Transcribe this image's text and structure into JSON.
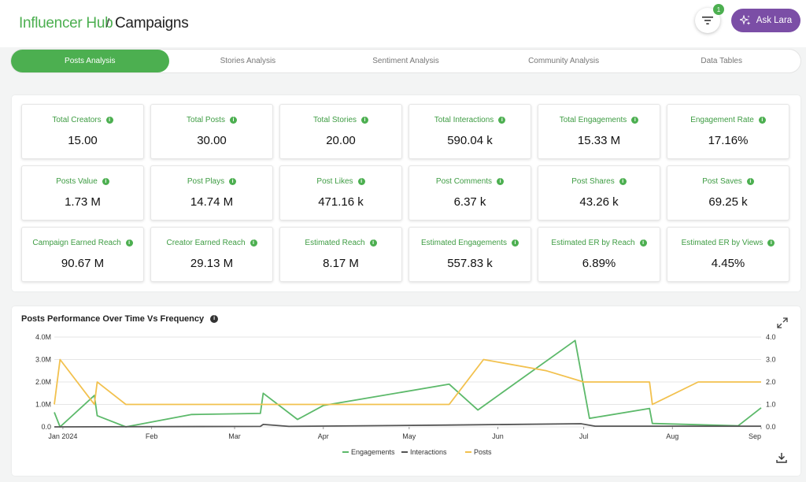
{
  "header": {
    "brand": "Influencer Hub",
    "separator": "/",
    "page_title": "Campaigns",
    "filter_badge": "1",
    "ask_label": "Ask Lara"
  },
  "tabs": [
    {
      "label": "Posts Analysis",
      "active": true
    },
    {
      "label": "Stories Analysis",
      "active": false
    },
    {
      "label": "Sentiment Analysis",
      "active": false
    },
    {
      "label": "Community Analysis",
      "active": false
    },
    {
      "label": "Data Tables",
      "active": false
    }
  ],
  "metrics": [
    {
      "label": "Total Creators",
      "value": "15.00"
    },
    {
      "label": "Total Posts",
      "value": "30.00"
    },
    {
      "label": "Total Stories",
      "value": "20.00"
    },
    {
      "label": "Total Interactions",
      "value": "590.04 k"
    },
    {
      "label": "Total Engagements",
      "value": "15.33 M"
    },
    {
      "label": "Engagement Rate",
      "value": "17.16%"
    },
    {
      "label": "Posts Value",
      "value": "1.73 M"
    },
    {
      "label": "Post Plays",
      "value": "14.74 M"
    },
    {
      "label": "Post Likes",
      "value": "471.16 k"
    },
    {
      "label": "Post Comments",
      "value": "6.37 k"
    },
    {
      "label": "Post Shares",
      "value": "43.26 k"
    },
    {
      "label": "Post Saves",
      "value": "69.25 k"
    },
    {
      "label": "Campaign Earned Reach",
      "value": "90.67 M"
    },
    {
      "label": "Creator Earned Reach",
      "value": "29.13 M"
    },
    {
      "label": "Estimated Reach",
      "value": "8.17 M"
    },
    {
      "label": "Estimated Engagements",
      "value": "557.83 k"
    },
    {
      "label": "Estimated ER by Reach",
      "value": "6.89%"
    },
    {
      "label": "Estimated ER by Views",
      "value": "4.45%"
    }
  ],
  "icons": {
    "filter": "filter-icon",
    "ask": "sparkle-icon",
    "info": "info-icon",
    "expand": "expand-icon",
    "download": "download-icon"
  },
  "colors": {
    "accent": "#4caf50",
    "ask_button": "#7b4ea6",
    "engagements": "#5cb96a",
    "interactions": "#555555",
    "posts": "#f2c14e"
  },
  "chart_data": {
    "type": "line",
    "title": "Posts Performance Over Time Vs Frequency",
    "x_ticks": [
      "Jan 2024",
      "Feb",
      "Mar",
      "Apr",
      "May",
      "Jun",
      "Jul",
      "Aug",
      "Sep"
    ],
    "x_range": [
      "2023-12-29",
      "2024-09-01"
    ],
    "y_left": {
      "range": [
        0,
        4000000
      ],
      "ticks": [
        "0.0",
        "1.0M",
        "2.0M",
        "3.0M",
        "4.0M"
      ]
    },
    "y_right": {
      "range": [
        0,
        4
      ],
      "ticks": [
        "0.0",
        "1.0",
        "2.0",
        "3.0",
        "4.0"
      ]
    },
    "legend": {
      "placement": "bottom"
    },
    "grid": true,
    "series": [
      {
        "name": "Engagements",
        "axis": "left",
        "points": [
          [
            "2023-12-29",
            650000
          ],
          [
            "2023-12-31",
            0
          ],
          [
            "2024-01-12",
            1400000
          ],
          [
            "2024-01-13",
            500000
          ],
          [
            "2024-01-23",
            0
          ],
          [
            "2024-02-15",
            550000
          ],
          [
            "2024-03-10",
            600000
          ],
          [
            "2024-03-11",
            1500000
          ],
          [
            "2024-03-23",
            330000
          ],
          [
            "2024-04-01",
            950000
          ],
          [
            "2024-05-15",
            1900000
          ],
          [
            "2024-05-25",
            750000
          ],
          [
            "2024-06-28",
            3850000
          ],
          [
            "2024-07-03",
            380000
          ],
          [
            "2024-07-24",
            820000
          ],
          [
            "2024-07-25",
            150000
          ],
          [
            "2024-08-24",
            50000
          ],
          [
            "2024-09-01",
            850000
          ]
        ]
      },
      {
        "name": "Interactions",
        "axis": "left",
        "points": [
          [
            "2023-12-29",
            0
          ],
          [
            "2024-03-10",
            20000
          ],
          [
            "2024-03-11",
            110000
          ],
          [
            "2024-03-20",
            20000
          ],
          [
            "2024-05-15",
            80000
          ],
          [
            "2024-06-30",
            140000
          ],
          [
            "2024-07-05",
            30000
          ],
          [
            "2024-09-01",
            30000
          ]
        ]
      },
      {
        "name": "Posts",
        "axis": "right",
        "points": [
          [
            "2023-12-29",
            1
          ],
          [
            "2023-12-31",
            3
          ],
          [
            "2024-01-12",
            1
          ],
          [
            "2024-01-13",
            2
          ],
          [
            "2024-01-23",
            1
          ],
          [
            "2024-05-15",
            1
          ],
          [
            "2024-05-27",
            3
          ],
          [
            "2024-06-18",
            2.5
          ],
          [
            "2024-07-01",
            2
          ],
          [
            "2024-07-24",
            2
          ],
          [
            "2024-07-25",
            1
          ],
          [
            "2024-08-10",
            2
          ],
          [
            "2024-09-01",
            2
          ]
        ]
      }
    ]
  }
}
